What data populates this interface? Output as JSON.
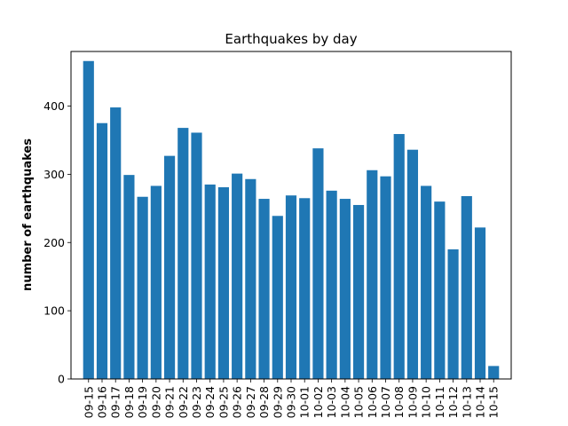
{
  "chart_data": {
    "type": "bar",
    "title": "Earthquakes by day",
    "xlabel": "",
    "ylabel": "number of earthquakes",
    "categories": [
      "09-15",
      "09-16",
      "09-17",
      "09-18",
      "09-19",
      "09-20",
      "09-21",
      "09-22",
      "09-23",
      "09-24",
      "09-25",
      "09-26",
      "09-27",
      "09-28",
      "09-29",
      "09-30",
      "10-01",
      "10-02",
      "10-03",
      "10-04",
      "10-05",
      "10-06",
      "10-07",
      "10-08",
      "10-09",
      "10-10",
      "10-11",
      "10-12",
      "10-13",
      "10-14",
      "10-15"
    ],
    "values": [
      466,
      375,
      398,
      299,
      267,
      283,
      327,
      368,
      361,
      285,
      281,
      301,
      293,
      264,
      239,
      269,
      265,
      338,
      276,
      264,
      255,
      306,
      297,
      359,
      336,
      283,
      260,
      190,
      268,
      222,
      19
    ],
    "ylim": [
      0,
      480
    ],
    "yticks": [
      0,
      100,
      200,
      300,
      400
    ],
    "grid": false,
    "bar_color": "#1f77b4"
  }
}
